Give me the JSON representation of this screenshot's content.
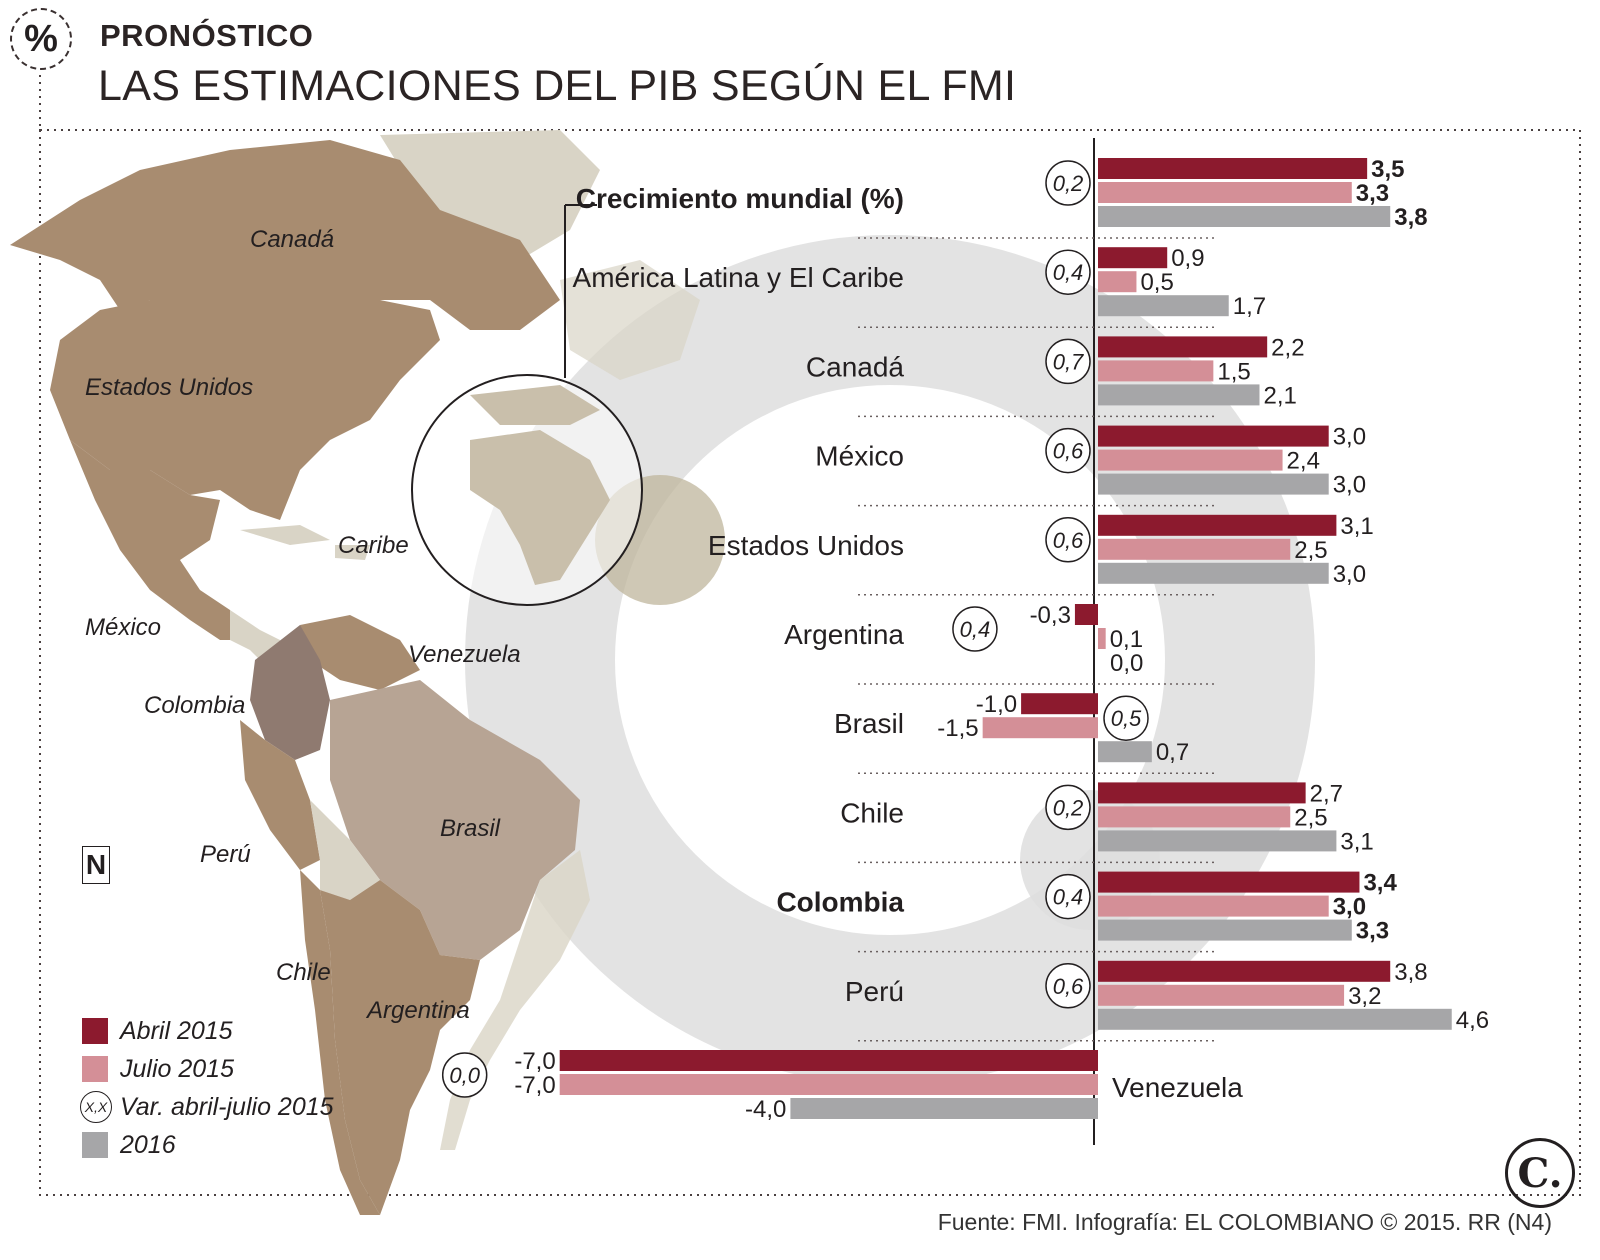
{
  "header": {
    "kicker": "PRONÓSTICO",
    "title": "LAS ESTIMACIONES DEL PIB SEGÚN EL FMI",
    "icon": "percent-icon"
  },
  "map": {
    "labels": {
      "canada": "Canadá",
      "usa": "Estados Unidos",
      "caribe": "Caribe",
      "mexico": "México",
      "venezuela": "Venezuela",
      "colombia": "Colombia",
      "brasil": "Brasil",
      "peru": "Perú",
      "chile": "Chile",
      "argentina": "Argentina"
    },
    "north_label": "N",
    "colors": {
      "land": "#a88c70",
      "land_light": "#d9d4c6",
      "colombia": "#8f7a70",
      "brasil": "#b7a494"
    }
  },
  "legend": {
    "items": [
      {
        "label": "Abril 2015",
        "color": "#8c1a2e",
        "kind": "swatch"
      },
      {
        "label": "Julio 2015",
        "color": "#d48f97",
        "kind": "swatch"
      },
      {
        "label": "Var. abril-julio 2015",
        "symbol": "X,X",
        "kind": "ring"
      },
      {
        "label": "2016",
        "color": "#a6a6a8",
        "kind": "swatch"
      }
    ]
  },
  "source": "Fuente: FMI. Infografía: EL COLOMBIANO © 2015. RR (N4)",
  "logo_text": "C.",
  "chart_data": {
    "type": "bar",
    "orientation": "horizontal",
    "colors": {
      "abril_2015": "#8c1a2e",
      "julio_2015": "#d48f97",
      "y2016": "#a6a6a8"
    },
    "categories": [
      {
        "name": "Crecimiento mundial (%)",
        "bold": true,
        "variation": "0,2",
        "values": [
          3.5,
          3.3,
          3.8
        ],
        "labels": [
          "3,5",
          "3,3",
          "3,8"
        ],
        "bold_values": true
      },
      {
        "name": "América Latina y El Caribe",
        "variation": "0,4",
        "values": [
          0.9,
          0.5,
          1.7
        ],
        "labels": [
          "0,9",
          "0,5",
          "1,7"
        ]
      },
      {
        "name": "Canadá",
        "variation": "0,7",
        "values": [
          2.2,
          1.5,
          2.1
        ],
        "labels": [
          "2,2",
          "1,5",
          "2,1"
        ]
      },
      {
        "name": "México",
        "variation": "0,6",
        "values": [
          3.0,
          2.4,
          3.0
        ],
        "labels": [
          "3,0",
          "2,4",
          "3,0"
        ]
      },
      {
        "name": "Estados Unidos",
        "variation": "0,6",
        "values": [
          3.1,
          2.5,
          3.0
        ],
        "labels": [
          "3,1",
          "2,5",
          "3,0"
        ]
      },
      {
        "name": "Argentina",
        "variation": "0,4",
        "values": [
          -0.3,
          0.1,
          0.0
        ],
        "labels": [
          "-0,3",
          "0,1",
          "0,0"
        ]
      },
      {
        "name": "Brasil",
        "variation": "0,5",
        "values": [
          -1.0,
          -1.5,
          0.7
        ],
        "labels": [
          "-1,0",
          "-1,5",
          "0,7"
        ]
      },
      {
        "name": "Chile",
        "variation": "0,2",
        "values": [
          2.7,
          2.5,
          3.1
        ],
        "labels": [
          "2,7",
          "2,5",
          "3,1"
        ]
      },
      {
        "name": "Colombia",
        "bold": true,
        "variation": "0,4",
        "values": [
          3.4,
          3.0,
          3.3
        ],
        "labels": [
          "3,4",
          "3,0",
          "3,3"
        ],
        "bold_values": true
      },
      {
        "name": "Perú",
        "variation": "0,6",
        "values": [
          3.8,
          3.2,
          4.6
        ],
        "labels": [
          "3,8",
          "3,2",
          "4,6"
        ]
      },
      {
        "name": "Venezuela",
        "variation": "0,0",
        "values": [
          -7.0,
          -7.0,
          -4.0
        ],
        "labels": [
          "-7,0",
          "-7,0",
          "-4,0"
        ],
        "label_right": true
      }
    ],
    "series": [
      {
        "name": "Abril 2015",
        "key": "abril_2015"
      },
      {
        "name": "Julio 2015",
        "key": "julio_2015"
      },
      {
        "name": "2016",
        "key": "y2016"
      }
    ],
    "xlim": [
      -7.0,
      4.6
    ],
    "xlabel": "",
    "ylabel": "",
    "grid": false
  }
}
